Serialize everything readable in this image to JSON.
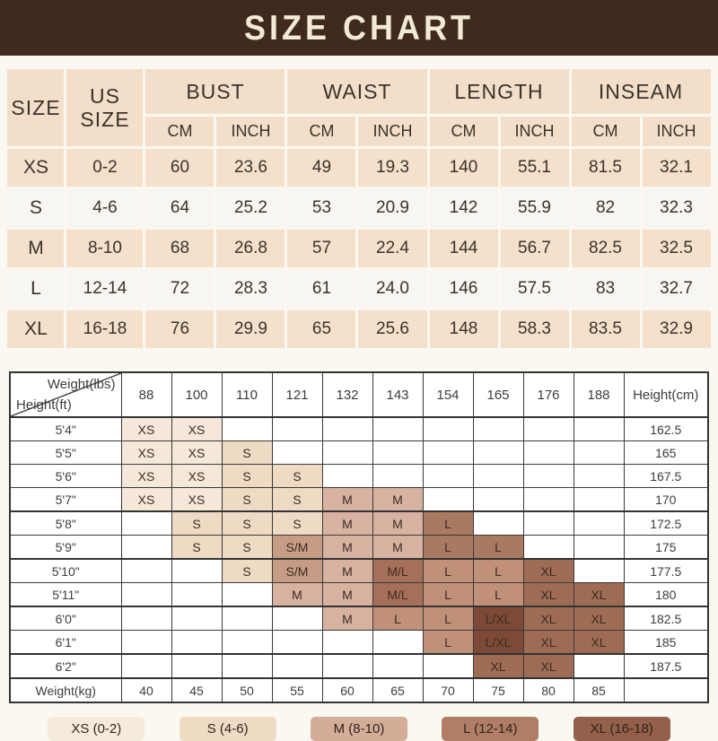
{
  "title": "SIZE CHART",
  "palette": {
    "xs": "#f6e8d8",
    "s": "#efdbc3",
    "sm": "#c69c85",
    "m": "#d8b2a0",
    "ml": "#a66f5a",
    "l": "#c19078",
    "ldark": "#a97a62",
    "lxl": "#7c4a37",
    "xl": "#9e6c54"
  },
  "size_table": {
    "size_label": "SIZE",
    "us_size_label": "US SIZE",
    "groups": [
      "BUST",
      "WAIST",
      "LENGTH",
      "INSEAM"
    ],
    "sub_headers": [
      "CM",
      "INCH"
    ],
    "rows": [
      {
        "size": "XS",
        "us": "0-2",
        "values": [
          "60",
          "23.6",
          "49",
          "19.3",
          "140",
          "55.1",
          "81.5",
          "32.1"
        ]
      },
      {
        "size": "S",
        "us": "4-6",
        "values": [
          "64",
          "25.2",
          "53",
          "20.9",
          "142",
          "55.9",
          "82",
          "32.3"
        ]
      },
      {
        "size": "M",
        "us": "8-10",
        "values": [
          "68",
          "26.8",
          "57",
          "22.4",
          "144",
          "56.7",
          "82.5",
          "32.5"
        ]
      },
      {
        "size": "L",
        "us": "12-14",
        "values": [
          "72",
          "28.3",
          "61",
          "24.0",
          "146",
          "57.5",
          "83",
          "32.7"
        ]
      },
      {
        "size": "XL",
        "us": "16-18",
        "values": [
          "76",
          "29.9",
          "65",
          "25.6",
          "148",
          "58.3",
          "83.5",
          "32.9"
        ]
      }
    ]
  },
  "matrix": {
    "corner_top": "Weight(lbs)",
    "corner_bottom": "Height(ft)",
    "weights_lbs": [
      "88",
      "100",
      "110",
      "121",
      "132",
      "143",
      "154",
      "165",
      "176",
      "188"
    ],
    "height_cm_label": "Height(cm)",
    "rows": [
      {
        "height_ft": "5'4\"",
        "height_cm": "162.5",
        "group_start": true,
        "cells": [
          {
            "t": "XS",
            "c": "xs"
          },
          {
            "t": "XS",
            "c": "xs"
          },
          null,
          null,
          null,
          null,
          null,
          null,
          null,
          null
        ]
      },
      {
        "height_ft": "5'5\"",
        "height_cm": "165",
        "group_start": false,
        "cells": [
          {
            "t": "XS",
            "c": "xs"
          },
          {
            "t": "XS",
            "c": "xs"
          },
          {
            "t": "S",
            "c": "s"
          },
          null,
          null,
          null,
          null,
          null,
          null,
          null
        ]
      },
      {
        "height_ft": "5'6\"",
        "height_cm": "167.5",
        "group_start": false,
        "cells": [
          {
            "t": "XS",
            "c": "xs"
          },
          {
            "t": "XS",
            "c": "xs"
          },
          {
            "t": "S",
            "c": "s"
          },
          {
            "t": "S",
            "c": "s"
          },
          null,
          null,
          null,
          null,
          null,
          null
        ]
      },
      {
        "height_ft": "5'7\"",
        "height_cm": "170",
        "group_start": false,
        "cells": [
          {
            "t": "XS",
            "c": "xs"
          },
          {
            "t": "XS",
            "c": "xs"
          },
          {
            "t": "S",
            "c": "s"
          },
          {
            "t": "S",
            "c": "s"
          },
          {
            "t": "M",
            "c": "m"
          },
          {
            "t": "M",
            "c": "m"
          },
          null,
          null,
          null,
          null
        ]
      },
      {
        "height_ft": "5'8\"",
        "height_cm": "172.5",
        "group_start": true,
        "cells": [
          null,
          {
            "t": "S",
            "c": "s"
          },
          {
            "t": "S",
            "c": "s"
          },
          {
            "t": "S",
            "c": "s"
          },
          {
            "t": "M",
            "c": "m"
          },
          {
            "t": "M",
            "c": "m"
          },
          {
            "t": "L",
            "c": "ldark"
          },
          null,
          null,
          null
        ]
      },
      {
        "height_ft": "5'9\"",
        "height_cm": "175",
        "group_start": false,
        "cells": [
          null,
          {
            "t": "S",
            "c": "s"
          },
          {
            "t": "S",
            "c": "s"
          },
          {
            "t": "S/M",
            "c": "sm"
          },
          {
            "t": "M",
            "c": "m"
          },
          {
            "t": "M",
            "c": "m"
          },
          {
            "t": "L",
            "c": "ldark"
          },
          {
            "t": "L",
            "c": "ldark"
          },
          null,
          null
        ]
      },
      {
        "height_ft": "5'10\"",
        "height_cm": "177.5",
        "group_start": true,
        "cells": [
          null,
          null,
          {
            "t": "S",
            "c": "s"
          },
          {
            "t": "S/M",
            "c": "sm"
          },
          {
            "t": "M",
            "c": "m"
          },
          {
            "t": "M/L",
            "c": "ml"
          },
          {
            "t": "L",
            "c": "l"
          },
          {
            "t": "L",
            "c": "l"
          },
          {
            "t": "XL",
            "c": "xl"
          },
          null
        ]
      },
      {
        "height_ft": "5'11\"",
        "height_cm": "180",
        "group_start": false,
        "cells": [
          null,
          null,
          null,
          {
            "t": "M",
            "c": "m"
          },
          {
            "t": "M",
            "c": "m"
          },
          {
            "t": "M/L",
            "c": "ml"
          },
          {
            "t": "L",
            "c": "l"
          },
          {
            "t": "L",
            "c": "l"
          },
          {
            "t": "XL",
            "c": "xl"
          },
          {
            "t": "XL",
            "c": "xl"
          }
        ]
      },
      {
        "height_ft": "6'0\"",
        "height_cm": "182.5",
        "group_start": true,
        "cells": [
          null,
          null,
          null,
          null,
          {
            "t": "M",
            "c": "m"
          },
          {
            "t": "L",
            "c": "l"
          },
          {
            "t": "L",
            "c": "l"
          },
          {
            "t": "L/XL",
            "c": "lxl"
          },
          {
            "t": "XL",
            "c": "xl"
          },
          {
            "t": "XL",
            "c": "xl"
          }
        ]
      },
      {
        "height_ft": "6'1\"",
        "height_cm": "185",
        "group_start": false,
        "cells": [
          null,
          null,
          null,
          null,
          null,
          null,
          {
            "t": "L",
            "c": "l"
          },
          {
            "t": "L/XL",
            "c": "lxl"
          },
          {
            "t": "XL",
            "c": "xl"
          },
          {
            "t": "XL",
            "c": "xl"
          }
        ]
      },
      {
        "height_ft": "6'2\"",
        "height_cm": "187.5",
        "group_start": true,
        "cells": [
          null,
          null,
          null,
          null,
          null,
          null,
          null,
          {
            "t": "XL",
            "c": "xl"
          },
          {
            "t": "XL",
            "c": "xl"
          },
          null
        ]
      }
    ],
    "weight_kg_label": "Weight(kg)",
    "weights_kg": [
      "40",
      "45",
      "50",
      "55",
      "60",
      "65",
      "70",
      "75",
      "80",
      "85"
    ]
  },
  "legend": {
    "items": [
      {
        "label": "XS (0-2)",
        "color": "#f5ebdd"
      },
      {
        "label": "S (4-6)",
        "color": "#efdbc4"
      },
      {
        "label": "M (8-10)",
        "color": "#d4ad99"
      },
      {
        "label": "L (12-14)",
        "color": "#b07e66"
      },
      {
        "label": "XL (16-18)",
        "color": "#92604b"
      }
    ]
  }
}
